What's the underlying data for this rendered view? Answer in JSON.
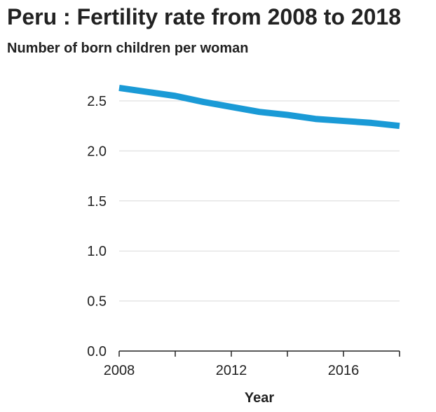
{
  "chart_data": {
    "type": "line",
    "title": "Peru : Fertility rate from 2008 to 2018",
    "subtitle": "Number of born children per woman",
    "xlabel": "Year",
    "ylabel": "",
    "x": [
      2008,
      2009,
      2010,
      2011,
      2012,
      2013,
      2014,
      2015,
      2016,
      2017,
      2018
    ],
    "series": [
      {
        "values": [
          2.63,
          2.59,
          2.55,
          2.49,
          2.44,
          2.39,
          2.36,
          2.32,
          2.3,
          2.28,
          2.25
        ],
        "color": "#1a9ad6"
      }
    ],
    "xlim": [
      2008,
      2018
    ],
    "ylim": [
      0,
      2.5
    ],
    "x_ticks": [
      2008,
      2010,
      2012,
      2014,
      2016,
      2018
    ],
    "x_tick_labels": [
      "2008",
      "",
      "2012",
      "",
      "2016",
      ""
    ],
    "y_ticks": [
      "0.0",
      "0.5",
      "1.0",
      "1.5",
      "2.0",
      "2.5"
    ],
    "grid": true
  }
}
